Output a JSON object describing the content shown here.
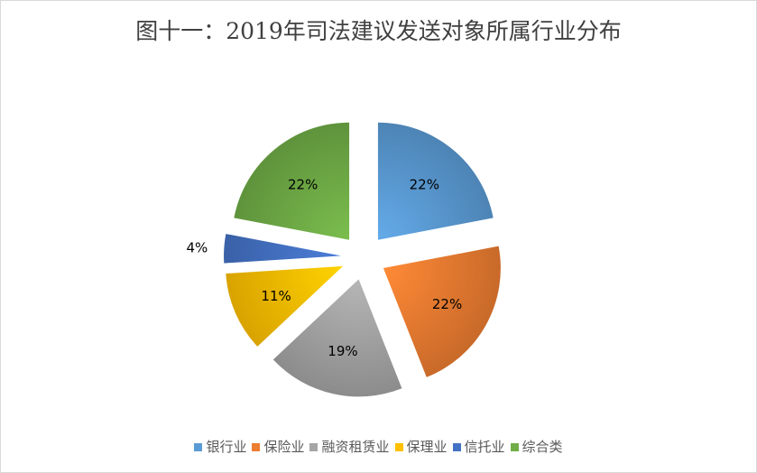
{
  "chart_data": {
    "type": "pie",
    "title": "图十一：2019年司法建议发送对象所属行业分布",
    "categories": [
      "银行业",
      "保险业",
      "融资租赁业",
      "保理业",
      "信托业",
      "综合类"
    ],
    "values": [
      22,
      22,
      19,
      11,
      4,
      22
    ],
    "data_labels": [
      "22%",
      "22%",
      "19%",
      "11%",
      "4%",
      "22%"
    ],
    "colors": [
      "#5b9bd5",
      "#ed7d31",
      "#a5a5a5",
      "#ffc000",
      "#4472c4",
      "#70ad47"
    ],
    "exploded": true,
    "legend": "bottom"
  }
}
